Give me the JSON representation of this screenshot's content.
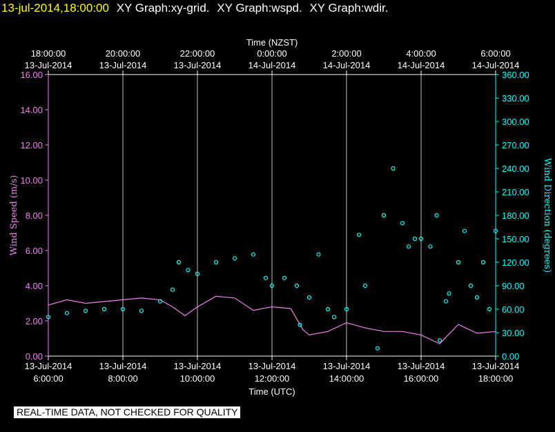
{
  "header": {
    "timestamp": "13-jul-2014,18:00:00",
    "graphs": [
      "XY Graph:xy-grid.",
      "XY Graph:wspd.",
      "XY Graph:wdir."
    ]
  },
  "notice": "REAL-TIME DATA, NOT CHECKED FOR QUALITY",
  "colors": {
    "background": "#000000",
    "axis": "#ffffff",
    "grid": "#c0c0c0",
    "timestamp": "#ffff00",
    "wind_speed": "#ee82ee",
    "wind_direction": "#00ffff"
  },
  "chart_data": {
    "type": "line",
    "x_top": {
      "label": "Time (NZST)",
      "ticks": [
        {
          "time": "18:00:00",
          "date": "13-Jul-2014"
        },
        {
          "time": "20:00:00",
          "date": "13-Jul-2014"
        },
        {
          "time": "22:00:00",
          "date": "13-Jul-2014"
        },
        {
          "time": "0:00:00",
          "date": "14-Jul-2014"
        },
        {
          "time": "2:00:00",
          "date": "14-Jul-2014"
        },
        {
          "time": "4:00:00",
          "date": "14-Jul-2014"
        },
        {
          "time": "6:00:00",
          "date": "14-Jul-2014"
        }
      ]
    },
    "x_bottom": {
      "label": "Time (UTC)",
      "range": [
        "13-Jul-2014 6:00:00",
        "13-Jul-2014 18:00:00"
      ],
      "ticks": [
        {
          "date": "13-Jul-2014",
          "time": "6:00:00"
        },
        {
          "date": "13-Jul-2014",
          "time": "8:00:00"
        },
        {
          "date": "13-Jul-2014",
          "time": "10:00:00"
        },
        {
          "date": "13-Jul-2014",
          "time": "12:00:00"
        },
        {
          "date": "13-Jul-2014",
          "time": "14:00:00"
        },
        {
          "date": "13-Jul-2014",
          "time": "16:00:00"
        },
        {
          "date": "13-Jul-2014",
          "time": "18:00:00"
        }
      ]
    },
    "y_left": {
      "label": "Wind Speed (m/s)",
      "ylim": [
        0,
        16
      ],
      "ticks": [
        "0.00",
        "2.00",
        "4.00",
        "6.00",
        "8.00",
        "10.00",
        "12.00",
        "14.00",
        "16.00"
      ]
    },
    "y_right": {
      "label": "Wind Direction (degrees)",
      "ylim": [
        0,
        360
      ],
      "ticks": [
        "0.00",
        "30.00",
        "60.00",
        "90.00",
        "120.00",
        "150.00",
        "180.00",
        "210.00",
        "240.00",
        "270.00",
        "300.00",
        "330.00",
        "360.00"
      ]
    },
    "grid": "vertical",
    "series": [
      {
        "name": "Wind Speed (m/s)",
        "axis": "left",
        "style": "line",
        "color": "#ee82ee",
        "x": [
          "6:00",
          "6:30",
          "7:00",
          "7:30",
          "8:00",
          "8:30",
          "9:00",
          "9:20",
          "9:40",
          "10:00",
          "10:30",
          "11:00",
          "11:30",
          "12:00",
          "12:30",
          "12:50",
          "13:00",
          "13:30",
          "14:00",
          "14:30",
          "15:00",
          "15:30",
          "16:00",
          "16:30",
          "17:00",
          "17:30",
          "18:00"
        ],
        "y": [
          2.9,
          3.2,
          3.0,
          3.1,
          3.2,
          3.3,
          3.2,
          2.8,
          2.3,
          2.8,
          3.4,
          3.3,
          2.6,
          2.8,
          2.7,
          1.5,
          1.2,
          1.4,
          1.9,
          1.6,
          1.4,
          1.4,
          1.2,
          0.7,
          1.8,
          1.3,
          1.4
        ]
      },
      {
        "name": "Wind Direction (degrees)",
        "axis": "right",
        "style": "markers",
        "color": "#00ffff",
        "x": [
          "6:00",
          "6:30",
          "7:00",
          "7:30",
          "8:00",
          "8:30",
          "9:00",
          "9:20",
          "9:30",
          "9:45",
          "10:00",
          "10:30",
          "11:00",
          "11:30",
          "11:50",
          "12:00",
          "12:20",
          "12:40",
          "12:45",
          "13:00",
          "13:15",
          "13:30",
          "13:40",
          "14:00",
          "14:20",
          "14:30",
          "14:50",
          "15:00",
          "15:15",
          "15:30",
          "15:40",
          "15:50",
          "16:00",
          "16:15",
          "16:25",
          "16:30",
          "16:40",
          "16:45",
          "17:00",
          "17:10",
          "17:20",
          "17:30",
          "17:40",
          "17:50",
          "18:00"
        ],
        "y": [
          50,
          55,
          58,
          60,
          60,
          58,
          70,
          85,
          120,
          110,
          105,
          120,
          125,
          130,
          100,
          90,
          100,
          90,
          40,
          75,
          130,
          60,
          50,
          60,
          155,
          90,
          10,
          180,
          240,
          170,
          140,
          150,
          150,
          140,
          180,
          20,
          70,
          80,
          120,
          160,
          90,
          75,
          120,
          60,
          160
        ]
      }
    ]
  }
}
